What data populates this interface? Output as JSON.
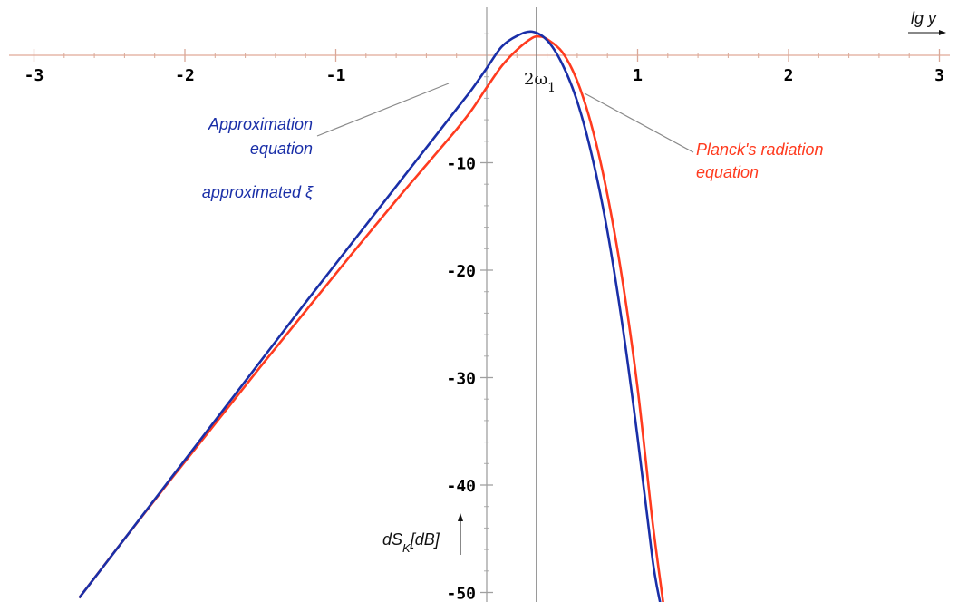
{
  "chart_data": {
    "type": "line",
    "xlabel": "lg y",
    "ylabel": "dS",
    "ylabel_sub": "K",
    "ylabel_unit": "[dB]",
    "xlim": [
      -3.1,
      3.1
    ],
    "ylim": [
      -51,
      4.5
    ],
    "x_ticks": [
      -3,
      -2,
      -1,
      1,
      2,
      3
    ],
    "x_tick_labels": [
      "-3",
      "-2",
      "-1",
      "1",
      "2",
      "3"
    ],
    "y_ticks": [
      -10,
      -20,
      -30,
      -40,
      -50
    ],
    "y_tick_labels": [
      "-10",
      "-20",
      "-30",
      "-40",
      "-50"
    ],
    "vline": {
      "x": 0.33,
      "label": "2ω",
      "label_sub": "1"
    },
    "series": [
      {
        "color": "#1a2fa8",
        "x": [
          -2.7,
          -2.4,
          -2.1,
          -1.8,
          -1.5,
          -1.2,
          -0.9,
          -0.6,
          -0.4,
          -0.2,
          -0.1,
          0.0,
          0.1,
          0.2,
          0.3,
          0.4,
          0.5,
          0.6,
          0.7,
          0.8,
          0.9,
          1.0,
          1.1,
          1.15
        ],
        "y": [
          -50.5,
          -45.0,
          -39.5,
          -34.0,
          -28.5,
          -23.0,
          -17.6,
          -12.2,
          -8.6,
          -5.0,
          -3.2,
          -1.2,
          0.8,
          1.8,
          2.2,
          1.4,
          -0.8,
          -4.3,
          -9.5,
          -16.4,
          -25.2,
          -35.6,
          -47.0,
          -51.0
        ]
      },
      {
        "color": "#ff3b1f",
        "x": [
          -2.7,
          -2.4,
          -2.1,
          -1.8,
          -1.5,
          -1.2,
          -0.9,
          -0.6,
          -0.4,
          -0.2,
          -0.1,
          0.0,
          0.1,
          0.2,
          0.3,
          0.35,
          0.4,
          0.5,
          0.6,
          0.7,
          0.8,
          0.9,
          1.0,
          1.1,
          1.17
        ],
        "y": [
          -50.5,
          -45.0,
          -39.6,
          -34.3,
          -29.0,
          -23.8,
          -18.6,
          -13.5,
          -10.2,
          -6.9,
          -5.1,
          -3.0,
          -1.0,
          0.5,
          1.6,
          1.75,
          1.5,
          0.3,
          -2.4,
          -6.8,
          -13.0,
          -21.0,
          -31.0,
          -43.5,
          -51.0
        ]
      }
    ],
    "annotations": {
      "blue_line1": "Approximation",
      "blue_line2": "equation",
      "blue_line3": "approximated ξ",
      "red_line1": "Planck's radiation",
      "red_line2": "equation"
    }
  }
}
